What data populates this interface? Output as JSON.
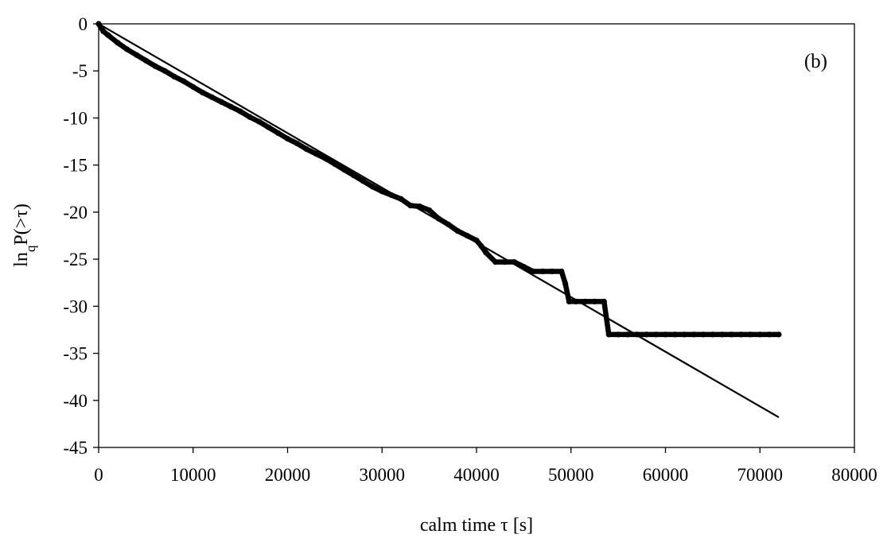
{
  "chart_data": {
    "type": "scatter",
    "panel_label": "(b)",
    "xlabel_prefix": "calm time ",
    "xlabel_symbol": "τ",
    "xlabel_unit": " [s]",
    "ylabel_base": "ln",
    "ylabel_sub": "q",
    "ylabel_rest": "P(>τ)",
    "xlim": [
      0,
      80000
    ],
    "ylim": [
      -45,
      0
    ],
    "x_ticks": [
      0,
      10000,
      20000,
      30000,
      40000,
      50000,
      60000,
      70000,
      80000
    ],
    "x_tick_labels": [
      "0",
      "10000",
      "20000",
      "30000",
      "40000",
      "50000",
      "60000",
      "70000",
      "80000"
    ],
    "y_ticks": [
      0,
      -5,
      -10,
      -15,
      -20,
      -25,
      -30,
      -35,
      -40,
      -45
    ],
    "y_tick_labels": [
      "0",
      "-5",
      "-10",
      "-15",
      "-20",
      "-25",
      "-30",
      "-35",
      "-40",
      "-45"
    ],
    "grid": false,
    "series": [
      {
        "kind": "points",
        "x": [
          0,
          500,
          1000,
          2000,
          3000,
          4000,
          5000,
          6000,
          7000,
          8000,
          9000,
          10000,
          11000,
          12000,
          13000,
          14000,
          15000,
          16000,
          17000,
          18000,
          19000,
          20000,
          21000,
          22000,
          23000,
          24000,
          25000,
          26000,
          27000,
          28000,
          29000,
          30000,
          31000,
          32000,
          33000,
          34000,
          35000,
          36000,
          37000,
          38000,
          39000,
          40000,
          40500,
          41000,
          42000,
          43000,
          44000,
          45000,
          46000,
          47000,
          48000,
          49000,
          49400,
          49800,
          50500,
          51500,
          52500,
          53500,
          54000,
          55000,
          56000,
          57000,
          58000,
          59000,
          60000,
          61000,
          62000,
          63000,
          64000,
          65000,
          66000,
          67000,
          68000,
          69000,
          70000,
          71000,
          72000
        ],
        "y": [
          0,
          -0.8,
          -1.2,
          -2.0,
          -2.7,
          -3.3,
          -3.9,
          -4.5,
          -5.0,
          -5.6,
          -6.1,
          -6.7,
          -7.3,
          -7.8,
          -8.3,
          -8.8,
          -9.3,
          -9.9,
          -10.4,
          -11.0,
          -11.6,
          -12.2,
          -12.7,
          -13.3,
          -13.8,
          -14.3,
          -14.9,
          -15.5,
          -16.1,
          -16.7,
          -17.3,
          -17.8,
          -18.2,
          -18.6,
          -19.3,
          -19.4,
          -19.8,
          -20.7,
          -21.3,
          -22.0,
          -22.5,
          -23.0,
          -23.6,
          -24.3,
          -25.3,
          -25.3,
          -25.3,
          -25.8,
          -26.3,
          -26.3,
          -26.3,
          -26.3,
          -27.6,
          -29.5,
          -29.5,
          -29.5,
          -29.5,
          -29.5,
          -33.0,
          -33.0,
          -33.0,
          -33.0,
          -33.0,
          -33.0,
          -33.0,
          -33.0,
          -33.0,
          -33.0,
          -33.0,
          -33.0,
          -33.0,
          -33.0,
          -33.0,
          -33.0,
          -33.0,
          -33.0,
          -33.0
        ]
      },
      {
        "kind": "line",
        "x": [
          0,
          72000
        ],
        "y": [
          0,
          -41.8
        ]
      }
    ]
  }
}
